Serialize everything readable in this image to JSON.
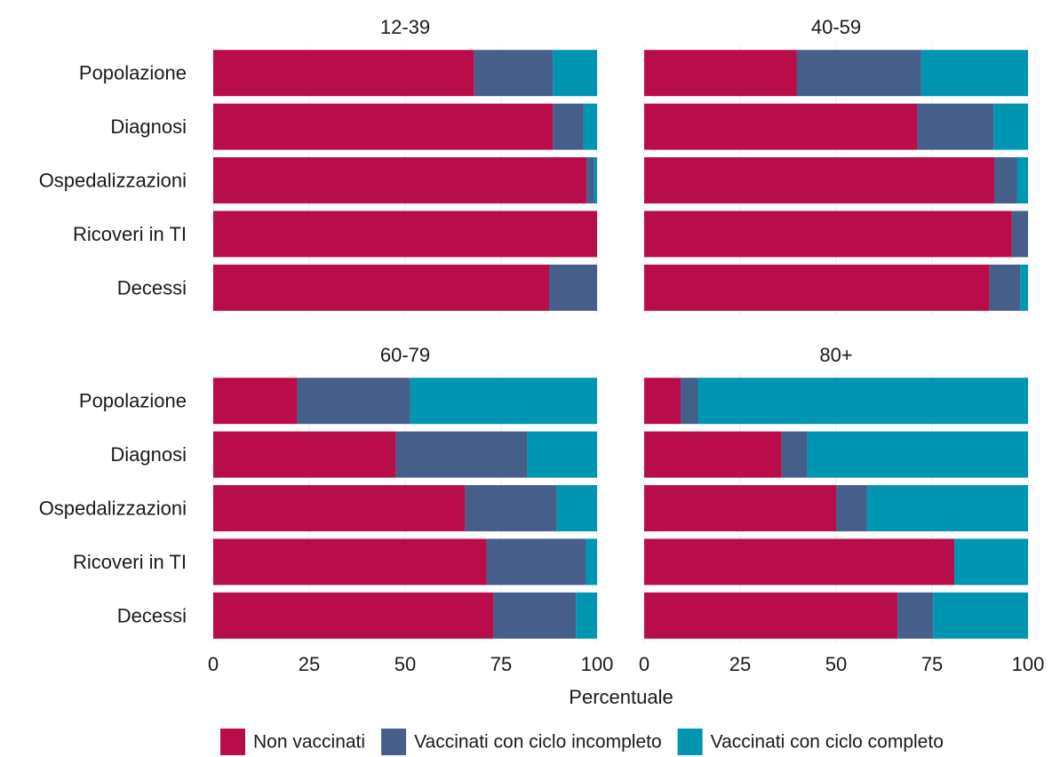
{
  "chart_data": {
    "type": "bar",
    "orientation": "horizontal",
    "stacked": true,
    "xlabel": "Percentuale",
    "xlim": [
      0,
      100
    ],
    "xticks": [
      "0",
      "25",
      "50",
      "75",
      "100"
    ],
    "categories": [
      "Popolazione",
      "Diagnosi",
      "Ospedalizzazioni",
      "Ricoveri in TI",
      "Decessi"
    ],
    "legend_position": "bottom",
    "grid": true,
    "series": [
      {
        "name": "Non vaccinati",
        "color": "#b80c4b"
      },
      {
        "name": "Vaccinati con ciclo incompleto",
        "color": "#465e8a"
      },
      {
        "name": "Vaccinati con ciclo completo",
        "color": "#0095b0"
      }
    ],
    "facets": [
      {
        "title": "12-39",
        "values": [
          [
            68,
            20.5,
            11.5
          ],
          [
            88.5,
            8,
            3.5
          ],
          [
            97.3,
            1.9,
            0.8
          ],
          [
            100,
            0,
            0
          ],
          [
            87.5,
            12.5,
            0
          ]
        ]
      },
      {
        "title": "40-59",
        "values": [
          [
            39.8,
            32.4,
            27.8
          ],
          [
            71.2,
            19.8,
            9
          ],
          [
            91.2,
            5.9,
            2.9
          ],
          [
            95.8,
            4.2,
            0
          ],
          [
            90,
            8,
            2
          ]
        ]
      },
      {
        "title": "60-79",
        "values": [
          [
            21.9,
            29.4,
            48.7
          ],
          [
            47.6,
            34.2,
            18.2
          ],
          [
            65.6,
            23.9,
            10.5
          ],
          [
            71.2,
            25.8,
            3
          ],
          [
            73,
            21.5,
            5.5
          ]
        ]
      },
      {
        "title": "80+",
        "values": [
          [
            9.5,
            4.5,
            86
          ],
          [
            35.8,
            6.7,
            57.5
          ],
          [
            50,
            8,
            42
          ],
          [
            80.8,
            0,
            19.2
          ],
          [
            66,
            9.3,
            24.7
          ]
        ]
      }
    ]
  }
}
